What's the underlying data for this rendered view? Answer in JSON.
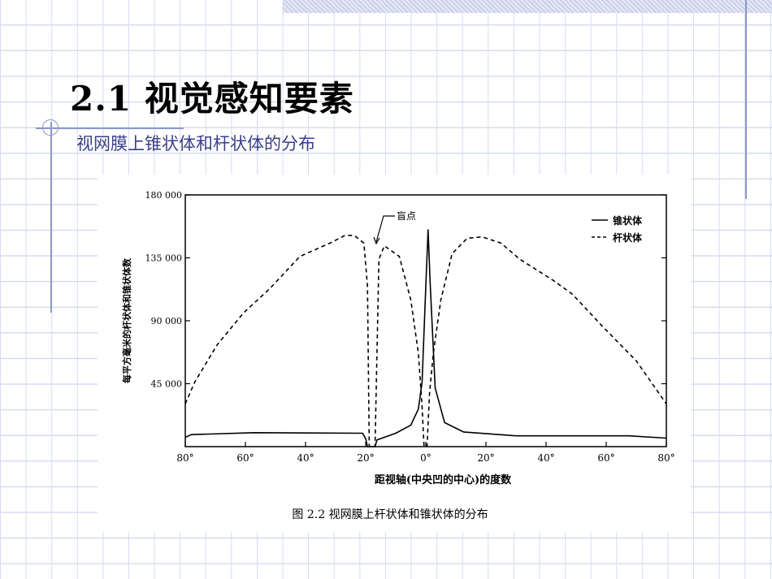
{
  "slide": {
    "title": "2.1   视觉感知要素",
    "subtitle": "视网膜上锥状体和杆状体的分布"
  },
  "chart_data": {
    "type": "line",
    "caption": "图 2.2   视网膜上杆状体和锥状体的分布",
    "xlabel": "距视轴(中央凹的中心)的度数",
    "ylabel": "每平方毫米的杆状体和锥状体数",
    "xlim": [
      -80,
      80
    ],
    "ylim": [
      0,
      180000
    ],
    "x_ticks": [
      {
        "value": -80,
        "label": "80°"
      },
      {
        "value": -60,
        "label": "60°"
      },
      {
        "value": -40,
        "label": "40°"
      },
      {
        "value": -20,
        "label": "20°"
      },
      {
        "value": 0,
        "label": "0°"
      },
      {
        "value": 20,
        "label": "20°"
      },
      {
        "value": 40,
        "label": "40°"
      },
      {
        "value": 60,
        "label": "60°"
      },
      {
        "value": 80,
        "label": "80°"
      }
    ],
    "y_ticks": [
      {
        "value": 45000,
        "label": "45 000"
      },
      {
        "value": 90000,
        "label": "90 000"
      },
      {
        "value": 135000,
        "label": "135 000"
      },
      {
        "value": 180000,
        "label": "180 000"
      }
    ],
    "annotation": {
      "label": "盲点",
      "x": -18,
      "y": 145000
    },
    "legend_position": "top-right",
    "grid": false,
    "series": [
      {
        "name": "锥状体",
        "style": "solid",
        "color": "#000000",
        "points": [
          [
            -80,
            6700
          ],
          [
            -78,
            8600
          ],
          [
            -57,
            10000
          ],
          [
            -21,
            9600
          ],
          [
            -20,
            5700
          ],
          [
            -19.4,
            0
          ],
          [
            -16.9,
            0
          ],
          [
            -16.25,
            4800
          ],
          [
            -10,
            9600
          ],
          [
            -5,
            15300
          ],
          [
            -2.5,
            26800
          ],
          [
            -1.25,
            46000
          ],
          [
            0,
            115000
          ],
          [
            0.75,
            155000
          ],
          [
            1.5,
            115000
          ],
          [
            3.1,
            42000
          ],
          [
            6.25,
            17200
          ],
          [
            12.5,
            10500
          ],
          [
            30,
            7700
          ],
          [
            67.5,
            7700
          ],
          [
            80,
            6100
          ]
        ]
      },
      {
        "name": "杆状体",
        "style": "dashed",
        "color": "#000000",
        "points": [
          [
            -80,
            30600
          ],
          [
            -76.9,
            46000
          ],
          [
            -69.4,
            72800
          ],
          [
            -60.6,
            95700
          ],
          [
            -51.9,
            113000
          ],
          [
            -41.9,
            136000
          ],
          [
            -31.9,
            145500
          ],
          [
            -26.9,
            151000
          ],
          [
            -23.8,
            151000
          ],
          [
            -20.6,
            145500
          ],
          [
            -19.4,
            115000
          ],
          [
            -18.8,
            0
          ],
          [
            -16.9,
            0
          ],
          [
            -15.6,
            134000
          ],
          [
            -13.8,
            143600
          ],
          [
            -8.8,
            136000
          ],
          [
            -5,
            105000
          ],
          [
            -2.5,
            67000
          ],
          [
            -1.25,
            28700
          ],
          [
            -0.6,
            0
          ],
          [
            0.4,
            0
          ],
          [
            1.25,
            38300
          ],
          [
            2.5,
            67000
          ],
          [
            5,
            105000
          ],
          [
            8.75,
            138000
          ],
          [
            13.75,
            149000
          ],
          [
            18.75,
            150000
          ],
          [
            25,
            145500
          ],
          [
            31.25,
            134000
          ],
          [
            42.5,
            118700
          ],
          [
            48.75,
            109000
          ],
          [
            58.75,
            86000
          ],
          [
            70,
            61300
          ],
          [
            80,
            30600
          ]
        ]
      }
    ]
  }
}
